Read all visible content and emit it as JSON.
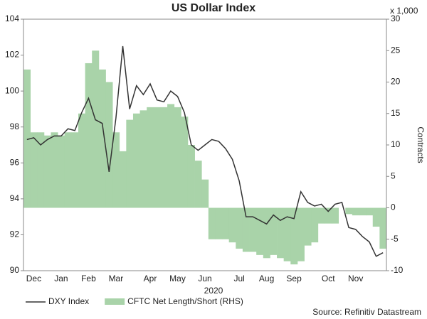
{
  "chart_data": {
    "type": "line_area",
    "title": "US Dollar Index",
    "x_label": "2020",
    "y2_unit": "x 1,000",
    "y2_label": "Contracts",
    "source": "Source: Refinitiv Datastream",
    "categories": [
      null,
      "Dec",
      null,
      null,
      null,
      "Jan",
      null,
      null,
      null,
      "Feb",
      null,
      null,
      null,
      "Mar",
      null,
      null,
      null,
      null,
      "Apr",
      null,
      null,
      null,
      "May",
      null,
      null,
      null,
      "Jun",
      null,
      null,
      null,
      null,
      "Jul",
      null,
      null,
      null,
      "Aug",
      null,
      null,
      null,
      "Sep",
      null,
      null,
      null,
      null,
      "Oct",
      null,
      null,
      null,
      "Nov",
      null,
      null,
      null,
      null
    ],
    "series": [
      {
        "name": "DXY Index",
        "color": "#333333",
        "axis": "y",
        "values": [
          97.3,
          97.4,
          97.0,
          97.3,
          97.5,
          97.5,
          97.9,
          97.8,
          98.8,
          99.6,
          98.4,
          98.2,
          95.5,
          98.5,
          102.5,
          99.0,
          100.3,
          99.8,
          100.4,
          99.5,
          99.4,
          100.0,
          99.7,
          98.8,
          97.0,
          96.7,
          97.0,
          97.3,
          97.2,
          96.8,
          96.2,
          95.0,
          93.0,
          93.0,
          92.8,
          92.6,
          93.1,
          92.8,
          93.0,
          92.9,
          94.4,
          93.8,
          93.6,
          93.7,
          93.3,
          93.7,
          93.8,
          92.4,
          92.3,
          91.9,
          91.6,
          90.8,
          91.0
        ]
      },
      {
        "name": "CFTC Net Length/Short (RHS)",
        "color": "#a9d3a9",
        "axis": "y2",
        "values": [
          22,
          12,
          12,
          11.5,
          12,
          11.5,
          12,
          12,
          15,
          23,
          25,
          22,
          20,
          12,
          9,
          14,
          15,
          15.5,
          16,
          16,
          16,
          16.5,
          16,
          14.5,
          10,
          7.5,
          4.5,
          -5,
          -5,
          -5,
          -5.5,
          -6.5,
          -7,
          -7,
          -7.5,
          -8,
          -7.5,
          -8,
          -8.5,
          -9,
          -8.5,
          -6,
          -5.5,
          -2.5,
          -2.5,
          -2.5,
          0,
          -1,
          -1.2,
          -1.2,
          -1.2,
          -3,
          -6.5
        ]
      }
    ],
    "ylim": [
      90,
      104
    ],
    "yticks": [
      90,
      92,
      94,
      96,
      98,
      100,
      102,
      104
    ],
    "y2lim": [
      -10,
      30
    ],
    "y2ticks": [
      -10,
      -5,
      0,
      5,
      10,
      15,
      20,
      25,
      30
    ],
    "grid": false,
    "legend": "bottom"
  }
}
